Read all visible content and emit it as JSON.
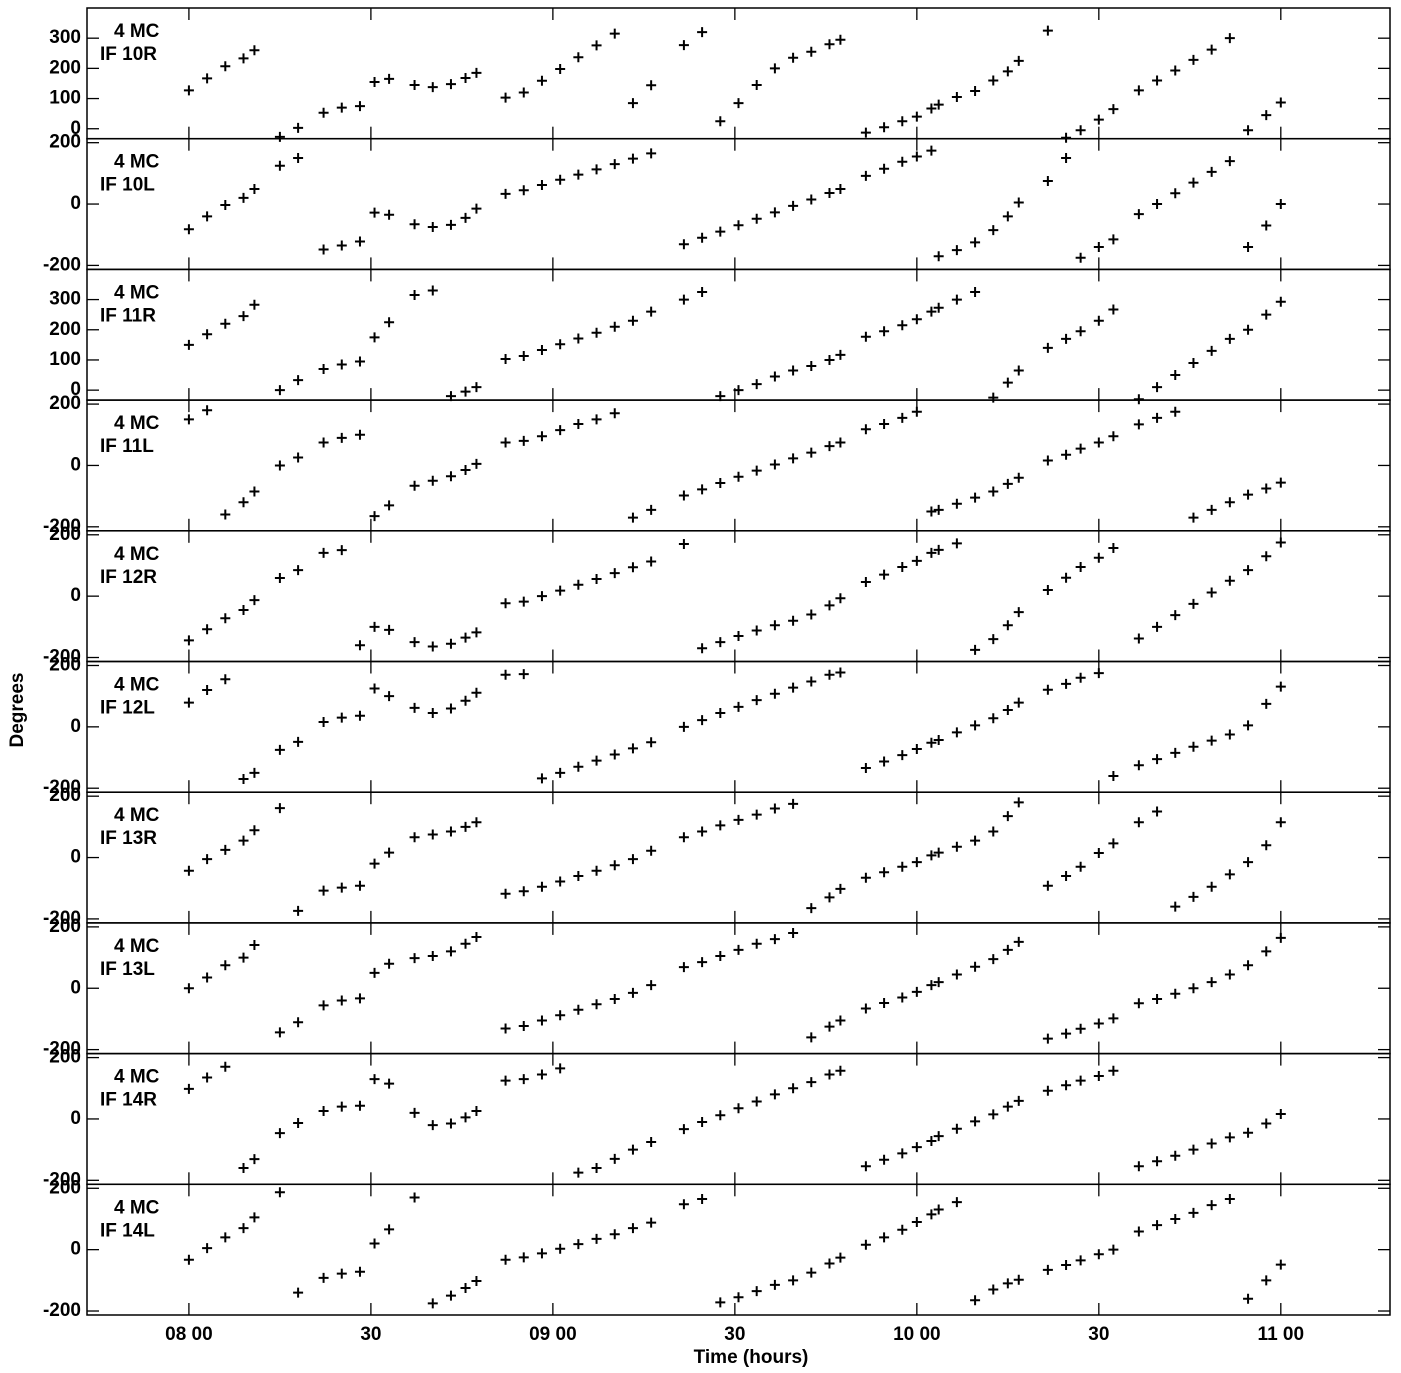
{
  "chart_data": {
    "type": "scatter",
    "x_label": "Time (hours)",
    "y_label": "Degrees",
    "color": "#000000",
    "xlim": [
      7.72,
      11.3
    ],
    "xticks": [
      {
        "value": 8,
        "label": "08 00"
      },
      {
        "value": 8.5,
        "label": "30"
      },
      {
        "value": 9,
        "label": "09 00"
      },
      {
        "value": 9.5,
        "label": "30"
      },
      {
        "value": 10,
        "label": "10 00"
      },
      {
        "value": 10.5,
        "label": "30"
      },
      {
        "value": 11,
        "label": "11 00"
      }
    ],
    "x": [
      8,
      8.05,
      8.1,
      8.15,
      8.18,
      8.25,
      8.3,
      8.37,
      8.42,
      8.47,
      8.51,
      8.55,
      8.62,
      8.67,
      8.72,
      8.76,
      8.79,
      8.87,
      8.92,
      8.97,
      9.02,
      9.07,
      9.12,
      9.17,
      9.22,
      9.27,
      9.36,
      9.41,
      9.46,
      9.51,
      9.56,
      9.61,
      9.66,
      9.71,
      9.76,
      9.79,
      9.86,
      9.91,
      9.96,
      10,
      10.04,
      10.06,
      10.11,
      10.16,
      10.21,
      10.25,
      10.28,
      10.36,
      10.41,
      10.45,
      10.5,
      10.54,
      10.61,
      10.66,
      10.71,
      10.76,
      10.81,
      10.86,
      10.91,
      10.96,
      11
    ],
    "panels": [
      {
        "label_lines": [
          "4 MC",
          "IF 10R"
        ],
        "ylim": [
          -33,
          400
        ],
        "yticks": [
          0,
          100,
          200,
          300
        ],
        "values": [
          127,
          167,
          207,
          233,
          260,
          -27,
          3,
          53,
          70,
          75,
          155,
          165,
          145,
          138,
          148,
          168,
          185,
          103,
          120,
          159,
          198,
          237,
          276,
          315,
          85,
          144,
          277,
          320,
          25,
          85,
          145,
          200,
          235,
          255,
          280,
          295,
          -13,
          5,
          25,
          40,
          67,
          80,
          105,
          125,
          160,
          190,
          225,
          325,
          -30,
          -5,
          30,
          65,
          127,
          160,
          193,
          228,
          262,
          300,
          -5,
          45,
          87
        ]
      },
      {
        "label_lines": [
          "4 MC",
          "IF 10L"
        ],
        "ylim": [
          -213,
          213
        ],
        "yticks": [
          -200,
          0,
          200
        ],
        "values": [
          -82,
          -40,
          -3,
          20,
          49,
          125,
          150,
          -148,
          -135,
          -122,
          -28,
          -35,
          -66,
          -75,
          -68,
          -45,
          -15,
          33,
          45,
          62,
          79,
          96,
          113,
          130,
          148,
          165,
          -131,
          -110,
          -90,
          -69,
          -48,
          -27,
          -6,
          15,
          36,
          49,
          92,
          115,
          138,
          155,
          174,
          -170,
          -150,
          -125,
          -85,
          -40,
          5,
          75,
          150,
          -175,
          -140,
          -115,
          -33,
          0,
          35,
          70,
          105,
          140,
          -140,
          -70,
          0
        ]
      },
      {
        "label_lines": [
          "4 MC",
          "IF 11R"
        ],
        "ylim": [
          -33,
          400
        ],
        "yticks": [
          0,
          100,
          200,
          300
        ],
        "values": [
          150,
          185,
          220,
          245,
          283,
          0,
          33,
          70,
          85,
          95,
          175,
          225,
          315,
          330,
          -20,
          -5,
          10,
          103,
          113,
          133,
          152,
          171,
          190,
          210,
          230,
          260,
          300,
          325,
          -20,
          0,
          20,
          45,
          65,
          80,
          100,
          117,
          177,
          195,
          215,
          235,
          260,
          273,
          300,
          325,
          -25,
          25,
          65,
          140,
          170,
          195,
          230,
          267,
          -30,
          10,
          50,
          90,
          130,
          170,
          200,
          250,
          293
        ]
      },
      {
        "label_lines": [
          "4 MC",
          "IF 11L"
        ],
        "ylim": [
          -213,
          213
        ],
        "yticks": [
          -200,
          0,
          200
        ],
        "values": [
          150,
          180,
          -160,
          -120,
          -85,
          0,
          26,
          75,
          90,
          100,
          -165,
          -130,
          -66,
          -50,
          -35,
          -15,
          5,
          75,
          80,
          95,
          115,
          135,
          150,
          170,
          -170,
          -145,
          -98,
          -78,
          -57,
          -37,
          -17,
          3,
          23,
          42,
          63,
          75,
          118,
          135,
          155,
          175,
          -150,
          -145,
          -125,
          -105,
          -85,
          -60,
          -40,
          16,
          35,
          55,
          75,
          95,
          134,
          155,
          175,
          -170,
          -145,
          -120,
          -95,
          -75,
          -56
        ]
      },
      {
        "label_lines": [
          "4 MC",
          "IF 12R"
        ],
        "ylim": [
          -213,
          213
        ],
        "yticks": [
          -200,
          0,
          200
        ],
        "values": [
          -144,
          -108,
          -72,
          -45,
          -13,
          59,
          85,
          141,
          150,
          -160,
          -100,
          -110,
          -150,
          -164,
          -155,
          -135,
          -118,
          -23,
          -18,
          0,
          18,
          37,
          56,
          75,
          94,
          113,
          170,
          -170,
          -150,
          -130,
          -112,
          -95,
          -80,
          -60,
          -30,
          -7,
          46,
          70,
          95,
          115,
          141,
          151,
          172,
          -175,
          -140,
          -95,
          -52,
          20,
          60,
          95,
          125,
          157,
          -138,
          -100,
          -62,
          -25,
          12,
          50,
          85,
          130,
          175
        ]
      },
      {
        "label_lines": [
          "4 MC",
          "IF 12L"
        ],
        "ylim": [
          -213,
          213
        ],
        "yticks": [
          -200,
          0,
          200
        ],
        "values": [
          79,
          120,
          155,
          -170,
          -150,
          -75,
          -49,
          16,
          30,
          36,
          125,
          100,
          62,
          45,
          60,
          85,
          111,
          170,
          172,
          -168,
          -150,
          -130,
          -110,
          -90,
          -70,
          -50,
          0,
          22,
          45,
          65,
          87,
          108,
          128,
          148,
          170,
          177,
          -134,
          -113,
          -92,
          -72,
          -52,
          -43,
          -18,
          5,
          28,
          55,
          79,
          121,
          140,
          160,
          175,
          -160,
          -125,
          -105,
          -85,
          -65,
          -45,
          -25,
          5,
          75,
          131
        ]
      },
      {
        "label_lines": [
          "4 MC",
          "IF 13R"
        ],
        "ylim": [
          -213,
          213
        ],
        "yticks": [
          -200,
          0,
          200
        ],
        "values": [
          -43,
          -5,
          25,
          55,
          89,
          161,
          -174,
          -108,
          -98,
          -92,
          -20,
          16,
          66,
          75,
          85,
          100,
          115,
          -118,
          -110,
          -95,
          -78,
          -60,
          -43,
          -25,
          -5,
          22,
          66,
          85,
          105,
          123,
          140,
          160,
          175,
          -165,
          -130,
          -102,
          -66,
          -48,
          -30,
          -15,
          7,
          16,
          35,
          55,
          85,
          135,
          180,
          -92,
          -60,
          -30,
          15,
          46,
          115,
          150,
          -160,
          -128,
          -95,
          -55,
          -15,
          40,
          115
        ]
      },
      {
        "label_lines": [
          "4 MC",
          "IF 13L"
        ],
        "ylim": [
          -213,
          213
        ],
        "yticks": [
          -200,
          0,
          200
        ],
        "values": [
          0,
          35,
          75,
          100,
          141,
          -144,
          -111,
          -56,
          -40,
          -33,
          50,
          80,
          98,
          105,
          120,
          145,
          167,
          -131,
          -123,
          -105,
          -88,
          -70,
          -52,
          -35,
          -15,
          10,
          69,
          85,
          105,
          125,
          145,
          160,
          180,
          -160,
          -125,
          -105,
          -66,
          -48,
          -30,
          -12,
          10,
          20,
          45,
          70,
          95,
          125,
          151,
          -164,
          -148,
          -132,
          -115,
          -98,
          -49,
          -35,
          -18,
          0,
          20,
          45,
          75,
          120,
          164
        ]
      },
      {
        "label_lines": [
          "4 MC",
          "IF 14R"
        ],
        "ylim": [
          -213,
          213
        ],
        "yticks": [
          -200,
          0,
          200
        ],
        "values": [
          98,
          135,
          170,
          -160,
          -131,
          -46,
          -13,
          26,
          40,
          43,
          130,
          115,
          20,
          -20,
          -15,
          5,
          26,
          125,
          130,
          145,
          165,
          -175,
          -160,
          -130,
          -100,
          -75,
          -33,
          -10,
          12,
          35,
          57,
          80,
          100,
          120,
          145,
          157,
          -154,
          -133,
          -112,
          -92,
          -72,
          -56,
          -32,
          -8,
          15,
          40,
          59,
          92,
          110,
          125,
          140,
          157,
          -154,
          -138,
          -120,
          -100,
          -80,
          -60,
          -45,
          -15,
          16
        ]
      },
      {
        "label_lines": [
          "4 MC",
          "IF 14L"
        ],
        "ylim": [
          -213,
          213
        ],
        "yticks": [
          -200,
          0,
          200
        ],
        "values": [
          -33,
          5,
          40,
          70,
          105,
          187,
          -140,
          -92,
          -78,
          -72,
          20,
          66,
          170,
          -175,
          -150,
          -125,
          -102,
          -33,
          -25,
          -12,
          3,
          18,
          35,
          50,
          70,
          88,
          148,
          165,
          -172,
          -155,
          -135,
          -115,
          -100,
          -75,
          -45,
          -26,
          16,
          40,
          65,
          90,
          115,
          131,
          155,
          -165,
          -130,
          -110,
          -98,
          -66,
          -50,
          -35,
          -15,
          0,
          59,
          80,
          100,
          120,
          145,
          165,
          -160,
          -100,
          -49
        ]
      }
    ]
  }
}
